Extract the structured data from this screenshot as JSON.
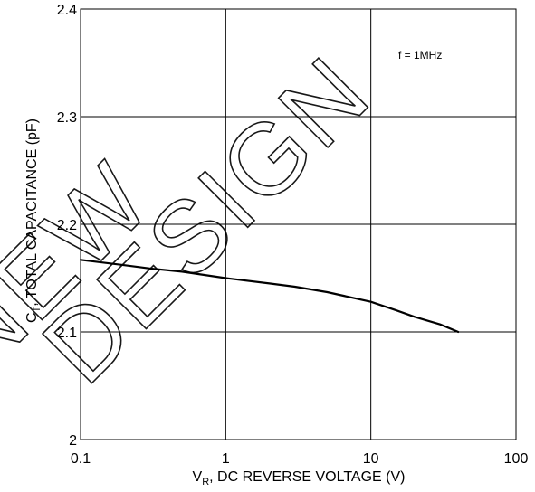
{
  "chart_data": {
    "type": "line",
    "title": "",
    "xlabel": {
      "main": "V",
      "sub": "R",
      "rest": ", DC REVERSE VOLTAGE (V)"
    },
    "ylabel": {
      "main": "C",
      "sub": "T",
      "rest": ", TOTAL CAPACITANCE (pF)"
    },
    "x_scale": "log",
    "xlim": [
      0.1,
      100
    ],
    "ylim": [
      2.0,
      2.4
    ],
    "x_ticks": [
      0.1,
      1,
      10,
      100
    ],
    "x_tick_labels": [
      "0.1",
      "1",
      "10",
      "100"
    ],
    "y_ticks": [
      2.0,
      2.1,
      2.2,
      2.3,
      2.4
    ],
    "y_tick_labels": [
      "2",
      "2.1",
      "2.2",
      "2.3",
      "2.4"
    ],
    "grid": true,
    "annotation": "f = 1MHz",
    "series": [
      {
        "x": [
          0.1,
          0.2,
          0.3,
          0.5,
          1,
          2,
          3,
          5,
          10,
          15,
          20,
          30,
          40
        ],
        "y": [
          2.167,
          2.162,
          2.159,
          2.156,
          2.15,
          2.145,
          2.142,
          2.137,
          2.128,
          2.12,
          2.114,
          2.107,
          2.1
        ],
        "color": "#000000"
      }
    ]
  },
  "watermark": [
    "NEW",
    "DESIGN"
  ]
}
